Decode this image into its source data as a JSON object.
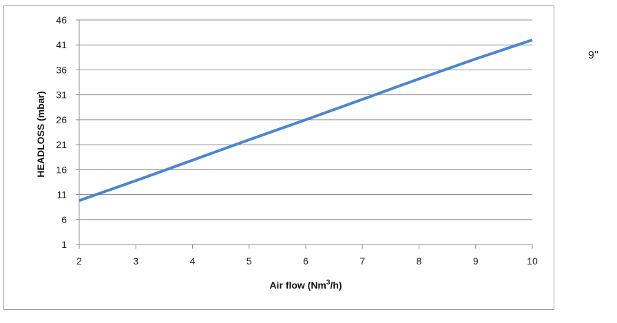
{
  "chart_data": {
    "type": "line",
    "x": [
      2,
      3,
      4,
      5,
      6,
      7,
      8,
      9,
      10
    ],
    "series": [
      {
        "name": "9''",
        "color": "#4a86d0",
        "values": [
          9.8,
          13.8,
          17.9,
          22.0,
          26.0,
          30.1,
          34.2,
          38.2,
          42.0
        ]
      }
    ],
    "xlabel_main": "Air flow (Nm",
    "xlabel_sup": "3",
    "xlabel_tail": "/h)",
    "ylabel": "HEADLOSS (mbar)",
    "xlim": [
      2,
      10
    ],
    "ylim": [
      1,
      46
    ],
    "xticks": [
      "2",
      "3",
      "4",
      "5",
      "6",
      "7",
      "8",
      "9",
      "10"
    ],
    "yticks": [
      "46",
      "41",
      "36",
      "31",
      "26",
      "21",
      "16",
      "11",
      "6",
      "1"
    ],
    "ytick_values": [
      46,
      41,
      36,
      31,
      26,
      21,
      16,
      11,
      6,
      1
    ],
    "grid": "horizontal",
    "legend_placement": "right",
    "gridline_color": "#8c8c8c",
    "axis_color": "#8c8c8c"
  }
}
